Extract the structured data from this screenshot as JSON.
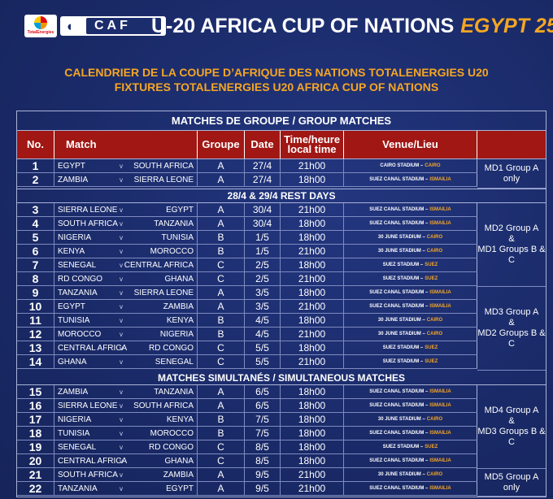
{
  "header": {
    "totalenergies_logo_text": "TotalEnergies",
    "caf_logo_text": "CAF",
    "title": "U-20 AFRICA CUP OF NATIONS",
    "title_accent": "EGYPT 25",
    "subtitle_fr": "CALENDRIER DE LA COUPE D’AFRIQUE DES NATIONS TOTALENERGIES U20",
    "subtitle_en": "FIXTURES TOTALENERGIES U20 AFRICA CUP OF NATIONS"
  },
  "table": {
    "banner_group": "MATCHES DE GROUPE / GROUP MATCHES",
    "columns": {
      "no": "No.",
      "match": "Match",
      "group": "Groupe",
      "date": "Date",
      "time_line1": "Time/heure",
      "time_line2": "local time",
      "venue": "Venue/Lieu"
    },
    "rest_days": "28/4 & 29/4 REST DAYS",
    "simultaneous": "MATCHES SIMULTANÉS / SIMULTANEOUS MATCHES",
    "vs_mark": "v",
    "matches": [
      {
        "no": "1",
        "home": "EGYPT",
        "away": "SOUTH AFRICA",
        "group": "A",
        "date": "27/4",
        "time": "21h00",
        "stadium": "CAIRO STADIUM –",
        "city": "CAIRO"
      },
      {
        "no": "2",
        "home": "ZAMBIA",
        "away": "SIERRA LEONE",
        "group": "A",
        "date": "27/4",
        "time": "18h00",
        "stadium": "SUEZ CANAL STADIUM –",
        "city": "ISMAILIA"
      },
      {
        "no": "3",
        "home": "SIERRA LEONE",
        "away": "EGYPT",
        "group": "A",
        "date": "30/4",
        "time": "21h00",
        "stadium": "SUEZ CANAL STADIUM –",
        "city": "ISMAILIA"
      },
      {
        "no": "4",
        "home": "SOUTH AFRICA",
        "away": "TANZANIA",
        "group": "A",
        "date": "30/4",
        "time": "18h00",
        "stadium": "SUEZ CANAL STADIUM –",
        "city": "ISMAILIA"
      },
      {
        "no": "5",
        "home": "NIGERIA",
        "away": "TUNISIA",
        "group": "B",
        "date": "1/5",
        "time": "18h00",
        "stadium": "30 JUNE STADIUM –",
        "city": "CAIRO"
      },
      {
        "no": "6",
        "home": "KENYA",
        "away": "MOROCCO",
        "group": "B",
        "date": "1/5",
        "time": "21h00",
        "stadium": "30 JUNE STADIUM –",
        "city": "CAIRO"
      },
      {
        "no": "7",
        "home": "SENEGAL",
        "away": "CENTRAL AFRICA",
        "group": "C",
        "date": "2/5",
        "time": "18h00",
        "stadium": "SUEZ STADIUM –",
        "city": "SUEZ"
      },
      {
        "no": "8",
        "home": "RD CONGO",
        "away": "GHANA",
        "group": "C",
        "date": "2/5",
        "time": "21h00",
        "stadium": "SUEZ STADIUM –",
        "city": "SUEZ"
      },
      {
        "no": "9",
        "home": "TANZANIA",
        "away": "SIERRA LEONE",
        "group": "A",
        "date": "3/5",
        "time": "18h00",
        "stadium": "SUEZ CANAL STADIUM –",
        "city": "ISMAILIA"
      },
      {
        "no": "10",
        "home": "EGYPT",
        "away": "ZAMBIA",
        "group": "A",
        "date": "3/5",
        "time": "21h00",
        "stadium": "SUEZ CANAL STADIUM –",
        "city": "ISMAILIA"
      },
      {
        "no": "11",
        "home": "TUNISIA",
        "away": "KENYA",
        "group": "B",
        "date": "4/5",
        "time": "18h00",
        "stadium": "30 JUNE STADIUM –",
        "city": "CAIRO"
      },
      {
        "no": "12",
        "home": "MOROCCO",
        "away": "NIGERIA",
        "group": "B",
        "date": "4/5",
        "time": "21h00",
        "stadium": "30 JUNE STADIUM –",
        "city": "CAIRO"
      },
      {
        "no": "13",
        "home": "CENTRAL AFRICA",
        "away": "RD CONGO",
        "group": "C",
        "date": "5/5",
        "time": "18h00",
        "stadium": "SUEZ STADIUM –",
        "city": "SUEZ"
      },
      {
        "no": "14",
        "home": "GHANA",
        "away": "SENEGAL",
        "group": "C",
        "date": "5/5",
        "time": "21h00",
        "stadium": "SUEZ STADIUM –",
        "city": "SUEZ"
      },
      {
        "no": "15",
        "home": "ZAMBIA",
        "away": "TANZANIA",
        "group": "A",
        "date": "6/5",
        "time": "18h00",
        "stadium": "SUEZ CANAL STADIUM –",
        "city": "ISMAILIA"
      },
      {
        "no": "16",
        "home": "SIERRA LEONE",
        "away": "SOUTH AFRICA",
        "group": "A",
        "date": "6/5",
        "time": "18h00",
        "stadium": "SUEZ CANAL STADIUM –",
        "city": "ISMAILIA"
      },
      {
        "no": "17",
        "home": "NIGERIA",
        "away": "KENYA",
        "group": "B",
        "date": "7/5",
        "time": "18h00",
        "stadium": "30 JUNE STADIUM –",
        "city": "CAIRO"
      },
      {
        "no": "18",
        "home": "TUNISIA",
        "away": "MOROCCO",
        "group": "B",
        "date": "7/5",
        "time": "18h00",
        "stadium": "SUEZ CANAL STADIUM –",
        "city": "ISMAILIA"
      },
      {
        "no": "19",
        "home": "SENEGAL",
        "away": "RD CONGO",
        "group": "C",
        "date": "8/5",
        "time": "18h00",
        "stadium": "SUEZ STADIUM –",
        "city": "SUEZ"
      },
      {
        "no": "20",
        "home": "CENTRAL AFRICA",
        "away": "GHANA",
        "group": "C",
        "date": "8/5",
        "time": "18h00",
        "stadium": "SUEZ CANAL STADIUM –",
        "city": "ISMAILIA"
      },
      {
        "no": "21",
        "home": "SOUTH AFRICA",
        "away": "ZAMBIA",
        "group": "A",
        "date": "9/5",
        "time": "21h00",
        "stadium": "30 JUNE STADIUM –",
        "city": "CAIRO"
      },
      {
        "no": "22",
        "home": "TANZANIA",
        "away": "EGYPT",
        "group": "A",
        "date": "9/5",
        "time": "21h00",
        "stadium": "SUEZ CANAL STADIUM –",
        "city": "ISMAILIA"
      }
    ],
    "matchdays": {
      "md1": "MD1 Group A only",
      "md2_line1": "MD2 Group A",
      "md2_line2": "&",
      "md2_line3": "MD1 Groups B & C",
      "md3_line1": "MD3 Group A",
      "md3_line2": "&",
      "md3_line3": "MD2 Groups B & C",
      "md4_line1": "MD4 Group A",
      "md4_line2": "&",
      "md4_line3": "MD3 Groups B & C",
      "md5": "MD5 Group A only"
    }
  }
}
